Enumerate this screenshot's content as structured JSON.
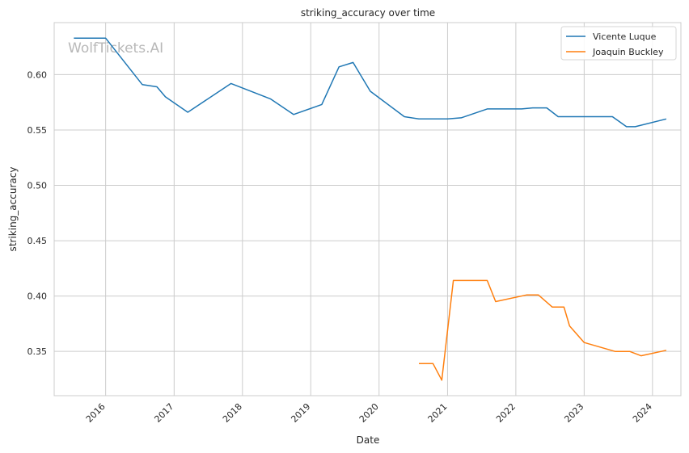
{
  "watermark": "WolfTickets.AI",
  "chart_data": {
    "type": "line",
    "title": "striking_accuracy over time",
    "xlabel": "Date",
    "ylabel": "striking_accuracy",
    "x_ticks": [
      "2016",
      "2017",
      "2018",
      "2019",
      "2020",
      "2021",
      "2022",
      "2023",
      "2024"
    ],
    "y_ticks": [
      "0.35",
      "0.40",
      "0.45",
      "0.50",
      "0.55",
      "0.60"
    ],
    "xlim": [
      "2015-04-01",
      "2024-06-01"
    ],
    "ylim": [
      0.31,
      0.647
    ],
    "grid": true,
    "legend_position": "top-right",
    "series": [
      {
        "name": "Vicente Luque",
        "color": "#1f77b4",
        "points": [
          [
            "2015-07-15",
            0.633
          ],
          [
            "2016-01-01",
            0.633
          ],
          [
            "2016-07-15",
            0.591
          ],
          [
            "2016-10-01",
            0.589
          ],
          [
            "2016-11-15",
            0.58
          ],
          [
            "2017-03-15",
            0.566
          ],
          [
            "2017-11-01",
            0.592
          ],
          [
            "2018-06-01",
            0.578
          ],
          [
            "2018-10-01",
            0.564
          ],
          [
            "2019-03-01",
            0.573
          ],
          [
            "2019-06-01",
            0.607
          ],
          [
            "2019-08-15",
            0.611
          ],
          [
            "2019-11-15",
            0.585
          ],
          [
            "2020-05-15",
            0.562
          ],
          [
            "2020-08-01",
            0.56
          ],
          [
            "2021-01-01",
            0.56
          ],
          [
            "2021-03-15",
            0.561
          ],
          [
            "2021-08-01",
            0.569
          ],
          [
            "2022-02-01",
            0.569
          ],
          [
            "2022-04-01",
            0.57
          ],
          [
            "2022-06-15",
            0.57
          ],
          [
            "2022-08-15",
            0.562
          ],
          [
            "2023-06-01",
            0.562
          ],
          [
            "2023-08-15",
            0.553
          ],
          [
            "2023-10-01",
            0.553
          ],
          [
            "2024-03-15",
            0.56
          ]
        ]
      },
      {
        "name": "Joaquin Buckley",
        "color": "#ff7f0e",
        "points": [
          [
            "2020-08-01",
            0.339
          ],
          [
            "2020-10-15",
            0.339
          ],
          [
            "2020-12-01",
            0.324
          ],
          [
            "2021-02-01",
            0.414
          ],
          [
            "2021-08-01",
            0.414
          ],
          [
            "2021-09-15",
            0.395
          ],
          [
            "2022-03-01",
            0.401
          ],
          [
            "2022-05-01",
            0.401
          ],
          [
            "2022-07-15",
            0.39
          ],
          [
            "2022-09-15",
            0.39
          ],
          [
            "2022-10-15",
            0.373
          ],
          [
            "2023-01-01",
            0.358
          ],
          [
            "2023-06-15",
            0.35
          ],
          [
            "2023-09-01",
            0.35
          ],
          [
            "2023-11-01",
            0.346
          ],
          [
            "2024-03-15",
            0.351
          ]
        ]
      }
    ]
  }
}
